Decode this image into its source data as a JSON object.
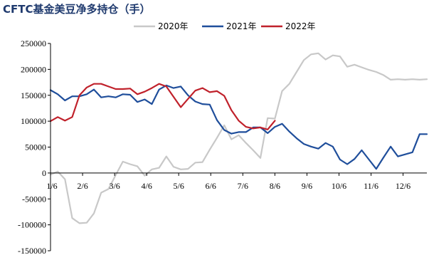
{
  "chart_data": {
    "type": "line",
    "title": "CFTC基金美豆净多持仓（手）",
    "xlabel": "",
    "ylabel": "",
    "ylim": [
      -150000,
      250000
    ],
    "yticks": [
      "250000",
      "200000",
      "150000",
      "100000",
      "50000",
      "0",
      "-50000",
      "-100000",
      "-150000"
    ],
    "ytick_values": [
      250000,
      200000,
      150000,
      100000,
      50000,
      0,
      -50000,
      -100000,
      -150000
    ],
    "x_tick_labels": [
      "1/6",
      "2/6",
      "3/6",
      "4/6",
      "5/6",
      "6/6",
      "7/6",
      "8/6",
      "9/6",
      "10/6",
      "11/6",
      "12/6"
    ],
    "x_tick_weeks": [
      0,
      4.43,
      8.86,
      13.29,
      17.71,
      22.14,
      26.57,
      31,
      35.43,
      39.86,
      44.29,
      48.71
    ],
    "legend_position": "top",
    "grid": false,
    "series": [
      {
        "name": "2020年",
        "color": "#c8c8c8",
        "week": [
          0,
          1,
          2,
          3,
          4,
          5,
          6,
          7,
          8,
          9,
          10,
          11,
          12,
          13,
          14,
          15,
          16,
          17,
          18,
          19,
          20,
          21,
          22,
          23,
          24,
          25,
          26,
          27,
          28,
          29,
          30,
          31,
          32,
          33,
          34,
          35,
          36,
          37,
          38,
          39,
          40,
          41,
          42,
          43,
          44,
          45,
          46,
          47,
          48,
          49,
          50,
          51,
          52
        ],
        "values": [
          -3000,
          3000,
          -12000,
          -87000,
          -97000,
          -96000,
          -78000,
          -38000,
          -31000,
          -4000,
          22000,
          17000,
          13000,
          -5000,
          7000,
          10000,
          32000,
          12000,
          7000,
          8000,
          20000,
          21000,
          45000,
          68000,
          92000,
          65000,
          73000,
          58000,
          44000,
          29000,
          106000,
          105000,
          158000,
          172000,
          195000,
          218000,
          229000,
          231000,
          219000,
          227000,
          225000,
          205000,
          209000,
          204000,
          199000,
          195000,
          189000,
          180000,
          181000,
          180000,
          181000,
          180000,
          181000
        ]
      },
      {
        "name": "2021年",
        "color": "#1f4e9b",
        "week": [
          0,
          1,
          2,
          3,
          4,
          5,
          6,
          7,
          8,
          9,
          10,
          11,
          12,
          13,
          14,
          15,
          16,
          17,
          18,
          19,
          20,
          21,
          22,
          23,
          24,
          25,
          26,
          27,
          28,
          29,
          30,
          31,
          32,
          33,
          34,
          35,
          36,
          37,
          38,
          39,
          40,
          41,
          42,
          43,
          44,
          45,
          46,
          47,
          48,
          49,
          50,
          51,
          52
        ],
        "values": [
          160000,
          152000,
          140000,
          148000,
          148000,
          152000,
          161000,
          146000,
          148000,
          146000,
          152000,
          151000,
          137000,
          142000,
          133000,
          161000,
          169000,
          164000,
          167000,
          150000,
          138000,
          133000,
          132000,
          102000,
          83000,
          76000,
          79000,
          79000,
          88000,
          88000,
          77000,
          89000,
          95000,
          80000,
          67000,
          56000,
          51000,
          47000,
          58000,
          51000,
          26000,
          17000,
          27000,
          44000,
          26000,
          8000,
          30000,
          51000,
          32000,
          36000,
          40000,
          75000,
          75000
        ]
      },
      {
        "name": "2022年",
        "color": "#c0212b",
        "week": [
          0,
          1,
          2,
          3,
          4,
          5,
          6,
          7,
          8,
          9,
          10,
          11,
          12,
          13,
          14,
          15,
          16,
          17,
          18,
          19,
          20,
          21,
          22,
          23,
          24,
          25,
          26,
          27,
          28,
          29,
          30,
          31
        ],
        "values": [
          100000,
          108000,
          101000,
          108000,
          150000,
          165000,
          172000,
          172000,
          167000,
          162000,
          162000,
          163000,
          152000,
          157000,
          164000,
          172000,
          167000,
          147000,
          127000,
          143000,
          159000,
          164000,
          156000,
          158000,
          149000,
          121000,
          101000,
          89000,
          86000,
          88000,
          84000,
          101000
        ]
      }
    ]
  }
}
